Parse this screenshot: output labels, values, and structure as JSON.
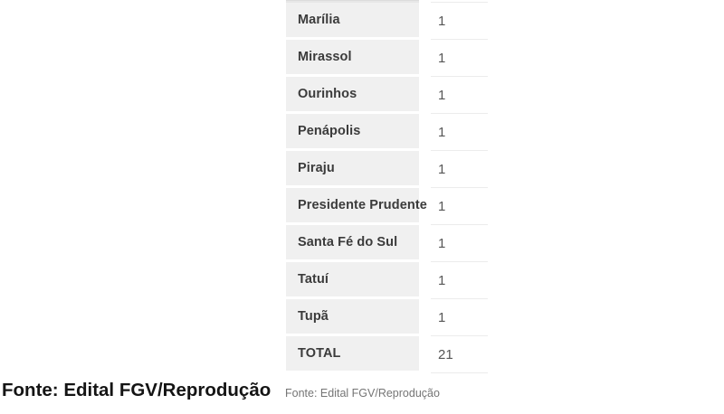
{
  "table": {
    "rows": [
      {
        "label": "Marília",
        "value": "1"
      },
      {
        "label": "Mirassol",
        "value": "1"
      },
      {
        "label": "Ourinhos",
        "value": "1"
      },
      {
        "label": "Penápolis",
        "value": "1"
      },
      {
        "label": "Piraju",
        "value": "1"
      },
      {
        "label": "Presidente Prudente",
        "value": "1"
      },
      {
        "label": "Santa Fé do Sul",
        "value": "1"
      },
      {
        "label": "Tatuí",
        "value": "1"
      },
      {
        "label": "Tupã",
        "value": "1"
      },
      {
        "label": "TOTAL",
        "value": "21"
      }
    ],
    "source_caption": "Fonte: Edital FGV/Reprodução"
  },
  "captions": {
    "article_source": "Fonte: Edital FGV/Reprodução"
  },
  "colors": {
    "label_cell_background": "#f0f0f0",
    "row_divider_line": "#ececec",
    "label_text": "#3b3b3b",
    "value_text": "#565656",
    "table_caption_text": "#757575",
    "article_caption_text": "#141414"
  }
}
